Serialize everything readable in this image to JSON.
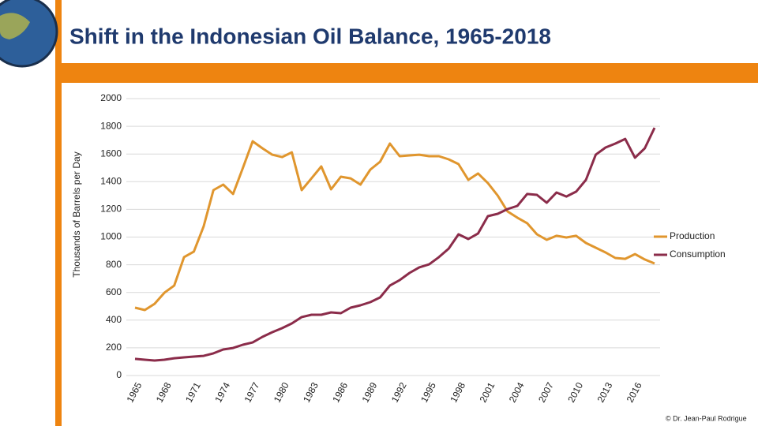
{
  "chart_data": {
    "type": "line",
    "title": "Shift in the Indonesian Oil Balance, 1965-2018",
    "y_label": "Thousands of Barrels per Day",
    "credit": "© Dr. Jean-Paul Rodrigue",
    "categories": [
      "1965",
      null,
      null,
      "1968",
      null,
      null,
      "1971",
      null,
      null,
      "1974",
      null,
      null,
      "1977",
      null,
      null,
      "1980",
      null,
      null,
      "1983",
      null,
      null,
      "1986",
      null,
      null,
      "1989",
      null,
      null,
      "1992",
      null,
      null,
      "1995",
      null,
      null,
      "1998",
      null,
      null,
      "2001",
      null,
      null,
      "2004",
      null,
      null,
      "2007",
      null,
      null,
      "2010",
      null,
      null,
      "2013",
      null,
      null,
      "2016",
      null,
      null
    ],
    "series": [
      {
        "name": "Production",
        "color": "#e0962e",
        "values": [
          490,
          473,
          518,
          598,
          650,
          855,
          895,
          1077,
          1339,
          1379,
          1311,
          1499,
          1692,
          1641,
          1595,
          1578,
          1612,
          1339,
          1424,
          1510,
          1345,
          1436,
          1424,
          1379,
          1487,
          1544,
          1675,
          1584,
          1590,
          1595,
          1584,
          1584,
          1561,
          1527,
          1413,
          1459,
          1390,
          1299,
          1185,
          1140,
          1100,
          1020,
          980,
          1009,
          997,
          1009,
          957,
          923,
          889,
          849,
          843,
          877,
          838,
          809
        ]
      },
      {
        "name": "Consumption",
        "color": "#8b2c4a",
        "values": [
          120,
          114,
          108,
          114,
          125,
          131,
          137,
          142,
          160,
          188,
          199,
          222,
          239,
          279,
          313,
          342,
          376,
          422,
          439,
          439,
          456,
          450,
          490,
          507,
          530,
          564,
          650,
          689,
          741,
          781,
          803,
          855,
          917,
          1020,
          986,
          1026,
          1151,
          1168,
          1202,
          1225,
          1311,
          1305,
          1248,
          1322,
          1293,
          1328,
          1413,
          1595,
          1647,
          1675,
          1709,
          1573,
          1641,
          1789
        ]
      }
    ],
    "ylim": [
      0,
      2000
    ],
    "yticks": [
      0,
      200,
      400,
      600,
      800,
      1000,
      1200,
      1400,
      1600,
      1800,
      2000
    ],
    "grid": true,
    "legend": "right"
  }
}
